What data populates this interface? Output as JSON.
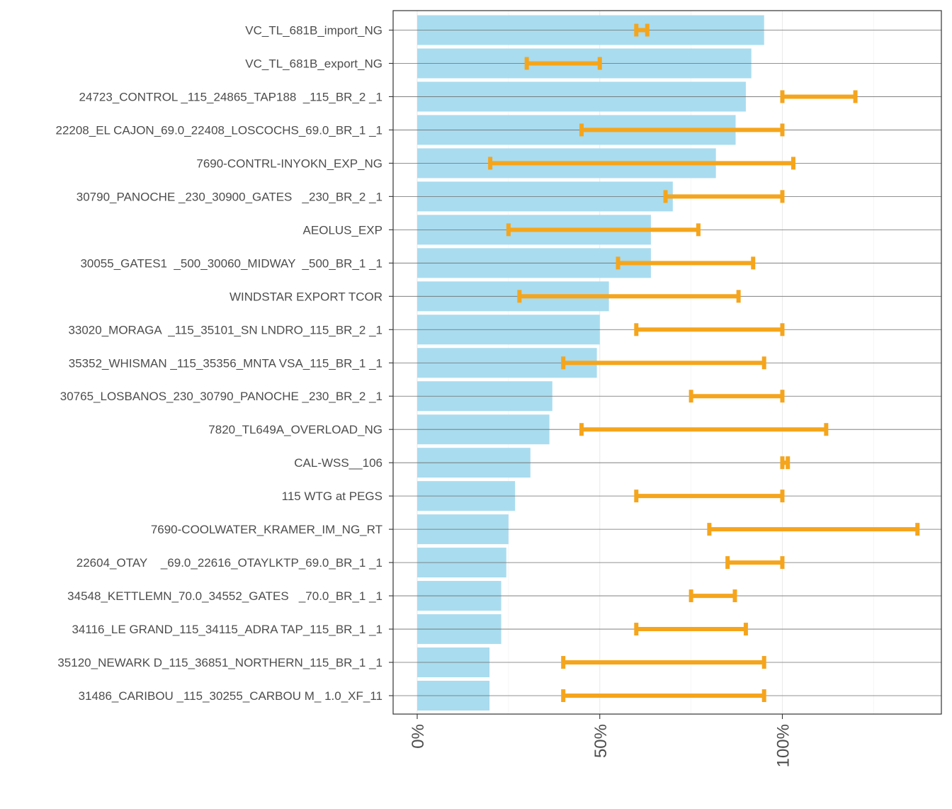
{
  "chart_data": {
    "type": "bar",
    "orientation": "horizontal",
    "title": "",
    "xlabel": "",
    "ylabel": "",
    "xlim": [
      -0.067,
      1.43
    ],
    "x_ticks": [
      0,
      0.5,
      1.0
    ],
    "x_tick_labels": [
      "0%",
      "50%",
      "100%"
    ],
    "categories": [
      "VC_TL_681B_import_NG",
      "VC_TL_681B_export_NG",
      "24723_CONTROL _115_24865_TAP188  _115_BR_2 _1",
      "22208_EL CAJON_69.0_22408_LOSCOCHS_69.0_BR_1 _1",
      "7690-CONTRL-INYOKN_EXP_NG",
      "30790_PANOCHE _230_30900_GATES   _230_BR_2 _1",
      "AEOLUS_EXP",
      "30055_GATES1  _500_30060_MIDWAY  _500_BR_1 _1",
      "WINDSTAR EXPORT TCOR",
      "33020_MORAGA  _115_35101_SN LNDRO_115_BR_2 _1",
      "35352_WHISMAN _115_35356_MNTA VSA_115_BR_1 _1",
      "30765_LOSBANOS_230_30790_PANOCHE _230_BR_2 _1",
      "7820_TL649A_OVERLOAD_NG",
      "CAL-WSS__106",
      "115 WTG at PEGS",
      "7690-COOLWATER_KRAMER_IM_NG_RT",
      "22604_OTAY    _69.0_22616_OTAYLKTP_69.0_BR_1 _1",
      "34548_KETTLEMN_70.0_34552_GATES   _70.0_BR_1 _1",
      "34116_LE GRAND_115_34115_ADRA TAP_115_BR_1 _1",
      "35120_NEWARK D_115_36851_NORTHERN_115_BR_1 _1",
      "31486_CARIBOU _115_30255_CARBOU M_ 1.0_XF_11"
    ],
    "series": [
      {
        "name": "bar",
        "color": "#a9dcef",
        "values": [
          0.95,
          0.915,
          0.9,
          0.872,
          0.818,
          0.7,
          0.64,
          0.64,
          0.525,
          0.5,
          0.492,
          0.37,
          0.362,
          0.31,
          0.268,
          0.25,
          0.244,
          0.23,
          0.23,
          0.198,
          0.198
        ]
      },
      {
        "name": "range",
        "color": "#f5a51c",
        "low": [
          0.6,
          0.3,
          1.0,
          0.45,
          0.2,
          0.68,
          0.25,
          0.55,
          0.28,
          0.6,
          0.4,
          0.75,
          0.45,
          1.0,
          0.6,
          0.8,
          0.85,
          0.75,
          0.6,
          0.4,
          0.4
        ],
        "high": [
          0.63,
          0.5,
          1.2,
          1.0,
          1.03,
          1.0,
          0.77,
          0.92,
          0.88,
          1.0,
          0.95,
          1.0,
          1.12,
          1.015,
          1.0,
          1.37,
          1.0,
          0.87,
          0.9,
          0.95,
          0.95
        ]
      }
    ],
    "grid": true,
    "legend": "none"
  }
}
